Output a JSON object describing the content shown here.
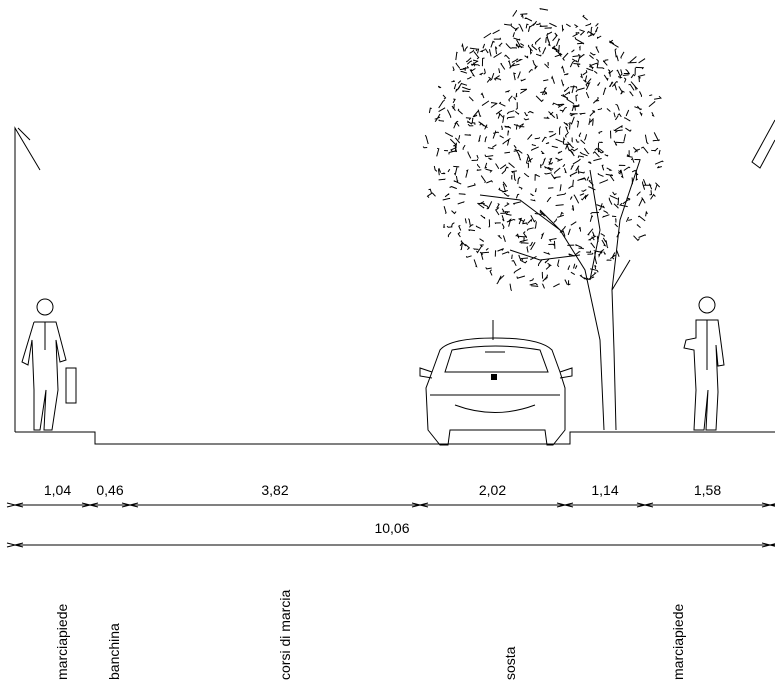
{
  "dimensions": [
    {
      "label": "1,04"
    },
    {
      "label": "0,46"
    },
    {
      "label": "3,82"
    },
    {
      "label": "2,02"
    },
    {
      "label": "1,14"
    },
    {
      "label": "1,58"
    }
  ],
  "total": {
    "label": "10,06"
  },
  "zones": [
    {
      "label": "marciapiede"
    },
    {
      "label": "banchina"
    },
    {
      "label": "corsi di marcia"
    },
    {
      "label": "sosta"
    },
    {
      "label": "marciapiede"
    }
  ]
}
